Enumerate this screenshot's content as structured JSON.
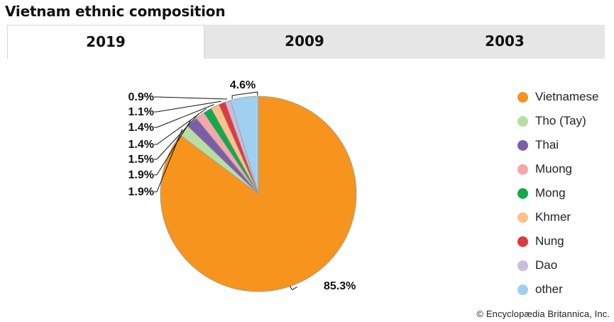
{
  "title": "Vietnam ethnic composition",
  "tabs": [
    "2019",
    "2009",
    "2003"
  ],
  "active_tab": "2019",
  "copyright": "© Encyclopædia Britannica, Inc.",
  "chart_data": {
    "type": "pie",
    "categories": [
      "Vietnamese",
      "Tho (Tay)",
      "Thai",
      "Muong",
      "Mong",
      "Khmer",
      "Nung",
      "Dao",
      "other"
    ],
    "values": [
      85.3,
      1.9,
      1.9,
      1.5,
      1.4,
      1.4,
      1.1,
      0.9,
      4.6
    ],
    "labels": [
      "85.3%",
      "1.9%",
      "1.9%",
      "1.5%",
      "1.4%",
      "1.4%",
      "1.1%",
      "0.9%",
      "4.6%"
    ],
    "colors": [
      "#f7941d",
      "#b8dea6",
      "#7b5ea7",
      "#f4a9a8",
      "#10a94c",
      "#fcc18b",
      "#e0393e",
      "#c9bddb",
      "#9fd0f0"
    ],
    "legend_position": "right"
  }
}
